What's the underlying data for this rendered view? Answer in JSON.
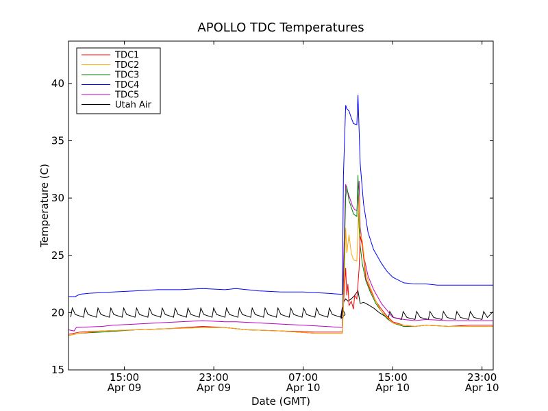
{
  "chart_data": {
    "type": "line",
    "title": "APOLLO TDC Temperatures",
    "xlabel": "Date (GMT)",
    "ylabel": "Temperature (C)",
    "xunit": "hours since Apr 09 10:00 GMT",
    "xlim": [
      0,
      38
    ],
    "ylim": [
      15,
      43.7
    ],
    "yticks": [
      15,
      20,
      25,
      30,
      35,
      40
    ],
    "xticks": [
      {
        "x": 5,
        "line1": "15:00",
        "line2": "Apr 09"
      },
      {
        "x": 13,
        "line1": "23:00",
        "line2": "Apr 09"
      },
      {
        "x": 21,
        "line1": "07:00",
        "line2": "Apr 10"
      },
      {
        "x": 29,
        "line1": "15:00",
        "line2": "Apr 10"
      },
      {
        "x": 37,
        "line1": "23:00",
        "line2": "Apr 10"
      }
    ],
    "legend_position": "top-left",
    "series": [
      {
        "name": "TDC1",
        "color": "#ff0000",
        "x": [
          0,
          1,
          3,
          6,
          9,
          12,
          14,
          16,
          19,
          22,
          24.5,
          24.6,
          24.8,
          24.9,
          25.0,
          25.1,
          25.3,
          25.5,
          25.6,
          25.8,
          26.0,
          26.1,
          26.3,
          26.6,
          27,
          27.5,
          28,
          28.5,
          29,
          30,
          31,
          32,
          34,
          36,
          38
        ],
        "values": [
          18.1,
          18.3,
          18.4,
          18.5,
          18.6,
          18.8,
          18.7,
          18.5,
          18.4,
          18.3,
          18.3,
          20.5,
          23.9,
          21.5,
          22.5,
          20.6,
          21.0,
          20.3,
          21.5,
          21.2,
          23.8,
          26.7,
          25.8,
          23.0,
          22.0,
          21.0,
          20.3,
          19.7,
          19.2,
          18.9,
          18.8,
          18.9,
          18.8,
          18.9,
          18.9
        ]
      },
      {
        "name": "TDC2",
        "color": "#ffa500",
        "x": [
          0,
          1,
          3,
          6,
          9,
          12,
          14,
          16,
          19,
          22,
          24.5,
          24.6,
          24.8,
          24.9,
          25.1,
          25.3,
          25.5,
          25.8,
          26.0,
          26.1,
          26.3,
          26.6,
          27,
          27.5,
          28,
          28.5,
          29,
          30,
          31,
          32,
          34,
          36,
          38
        ],
        "values": [
          18.0,
          18.2,
          18.4,
          18.5,
          18.6,
          18.7,
          18.7,
          18.5,
          18.4,
          18.2,
          18.2,
          20.5,
          27.4,
          25.2,
          26.8,
          25.2,
          24.6,
          24.5,
          30.2,
          27.0,
          26.2,
          23.5,
          22.2,
          21.0,
          20.1,
          19.6,
          19.1,
          18.9,
          18.8,
          18.9,
          18.8,
          18.8,
          18.8
        ]
      },
      {
        "name": "TDC3",
        "color": "#008000",
        "x": [
          0,
          1,
          3,
          6,
          9,
          12,
          14,
          16,
          19,
          22,
          24.5,
          24.6,
          24.8,
          24.9,
          25.1,
          25.3,
          25.5,
          25.8,
          25.9,
          26.0,
          26.1,
          26.3,
          26.6,
          27,
          27.5,
          28,
          28.5,
          29,
          30,
          31,
          32,
          34,
          36,
          38
        ],
        "values": [
          18.0,
          18.2,
          18.3,
          18.5,
          18.6,
          18.7,
          18.7,
          18.5,
          18.4,
          18.2,
          18.2,
          22.0,
          30.0,
          31.0,
          29.8,
          29.2,
          28.6,
          28.4,
          32.0,
          27.5,
          25.8,
          24.2,
          22.8,
          21.8,
          20.8,
          20.1,
          19.5,
          19.1,
          18.8,
          18.8,
          18.9,
          18.8,
          18.8,
          18.8
        ]
      },
      {
        "name": "TDC4",
        "color": "#0000ff",
        "x": [
          0,
          0.6,
          1,
          2,
          4,
          6,
          8,
          10,
          12,
          14,
          15,
          17,
          19,
          21,
          23,
          24.4,
          24.5,
          24.6,
          24.8,
          24.9,
          25.1,
          25.3,
          25.5,
          25.8,
          25.9,
          26.0,
          26.1,
          26.4,
          26.8,
          27.3,
          28,
          28.5,
          29,
          30,
          31,
          32,
          33,
          34,
          35,
          36,
          37,
          38
        ],
        "values": [
          21.4,
          21.4,
          21.6,
          21.7,
          21.8,
          21.9,
          22.0,
          22.0,
          22.1,
          22.0,
          22.1,
          21.9,
          21.8,
          21.8,
          21.7,
          21.6,
          21.6,
          32.0,
          38.1,
          37.8,
          37.6,
          37.0,
          36.5,
          36.4,
          39.0,
          36.0,
          33.0,
          29.5,
          27.0,
          25.5,
          24.3,
          23.6,
          23.1,
          22.6,
          22.5,
          22.5,
          22.4,
          22.4,
          22.4,
          22.4,
          22.4,
          22.4
        ]
      },
      {
        "name": "TDC5",
        "color": "#bf00bf",
        "x": [
          0,
          0.5,
          0.7,
          3,
          4,
          6,
          8,
          10,
          12,
          14,
          15,
          17,
          19,
          21,
          23,
          24.5,
          24.6,
          24.8,
          25.0,
          25.2,
          25.4,
          25.6,
          25.8,
          26.0,
          26.1,
          26.4,
          26.8,
          27.3,
          28,
          28.5,
          29,
          30,
          31,
          32,
          34,
          36,
          38
        ],
        "values": [
          18.5,
          18.4,
          18.7,
          18.8,
          18.9,
          19.0,
          19.1,
          19.2,
          19.3,
          19.2,
          19.2,
          19.1,
          19.0,
          18.9,
          18.8,
          18.7,
          24.0,
          31.2,
          30.5,
          29.9,
          29.3,
          29.0,
          28.9,
          31.5,
          27.5,
          25.0,
          23.2,
          22.0,
          20.8,
          20.2,
          19.6,
          19.4,
          19.3,
          19.4,
          19.3,
          19.3,
          19.3
        ]
      }
    ],
    "utah_air": {
      "name": "Utah Air",
      "color": "#000000",
      "base": 19.6,
      "peak": 20.4,
      "period_hours": 1.15,
      "start_hour": 0.2,
      "end_hour": 24.4,
      "spike_x": [
        24.4,
        24.6,
        24.8,
        25.0,
        25.3,
        25.6,
        25.9,
        26.1,
        26.4,
        26.8,
        27.3,
        27.8,
        28.3,
        28.6
      ],
      "spike_values": [
        19.5,
        20.9,
        21.2,
        21.0,
        21.2,
        21.5,
        21.9,
        20.8,
        20.9,
        20.7,
        20.4,
        20.0,
        19.7,
        19.4
      ],
      "tail_start": 28.6,
      "tail_period_hours": 1.2,
      "tail_base": 19.4,
      "tail_peak": 20.1
    }
  }
}
